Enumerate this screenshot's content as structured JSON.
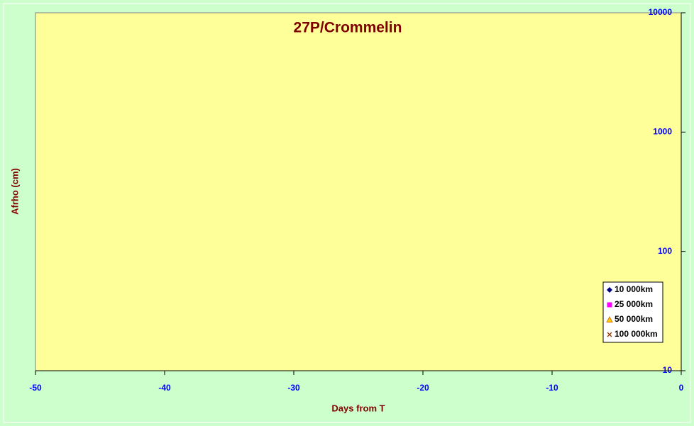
{
  "chart_data": {
    "type": "scatter",
    "title": "27P/Crommelin",
    "xlabel": "Days from T",
    "ylabel": "Afrho (cm)",
    "xlim": [
      -50,
      0
    ],
    "xticks": [
      -50,
      -40,
      -30,
      -20,
      -10,
      0
    ],
    "ylim": [
      10,
      10000
    ],
    "yticks": [
      10,
      100,
      1000,
      10000
    ],
    "ylog": true,
    "legend": "lower right",
    "series": [
      {
        "name": "10 000km",
        "color": "#000080",
        "marker": "diamond",
        "x": [],
        "values": []
      },
      {
        "name": "25 000km",
        "color": "#ff00ff",
        "marker": "square",
        "x": [],
        "values": []
      },
      {
        "name": "50 000km",
        "color": "#ffcc00",
        "marker": "triangle",
        "x": [],
        "values": []
      },
      {
        "name": "100 000km",
        "color": "#993300",
        "marker": "cross",
        "x": [],
        "values": []
      }
    ]
  }
}
